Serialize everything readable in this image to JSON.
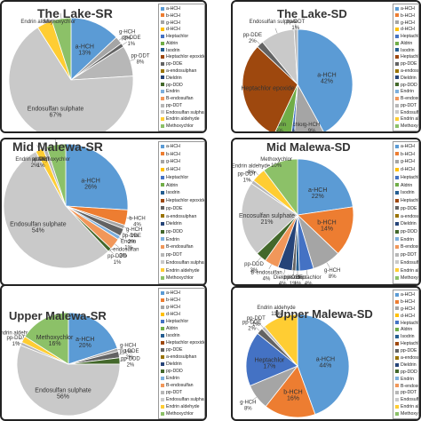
{
  "legend_items": [
    "a-HCH",
    "b-HCH",
    "g-HCH",
    "d-HCH",
    "Heptachlor",
    "Aldrin",
    "Isodrin",
    "Heptachlor epoxide",
    "pp-DDE",
    "a-endosulphan",
    "Dieldrin",
    "pp-DDD",
    "Endrin",
    "B-endosulfan",
    "pp-DDT",
    "Endosulfan sulphate",
    "Endrin aldehyde",
    "Methoxychlor"
  ],
  "colors": [
    "#5b9bd5",
    "#ed7d31",
    "#a5a5a5",
    "#ffc000",
    "#4472c4",
    "#70ad47",
    "#255e91",
    "#9e480e",
    "#636363",
    "#997300",
    "#264478",
    "#43682b",
    "#7cafdd",
    "#f1975a",
    "#b7b7b7",
    "#c9c9c9",
    "#ffcd33",
    "#8cc168"
  ],
  "chart_data": [
    {
      "type": "pie",
      "title": "The Lake-SR",
      "categories": [
        "a-HCH",
        "g-HCH",
        "pp-DDE",
        "pp-DDT",
        "Endosulfan sulphate",
        "Endrin aldehyde",
        "Methoxychlor"
      ],
      "values": [
        13,
        2,
        1,
        8,
        67,
        4,
        5
      ],
      "labels": [
        {
          "name": "a-HCH",
          "pct": "13%"
        },
        {
          "name": "g-HCH",
          "pct": "2%"
        },
        {
          "name": "pp-DDE",
          "pct": "1%"
        },
        {
          "name": "pp-DDT",
          "pct": "8%"
        },
        {
          "name": "Endosulfan sulphate",
          "pct": "67%"
        },
        {
          "name": "Endrin aldehyde",
          "pct": ""
        },
        {
          "name": "Methoxychlor",
          "pct": ""
        }
      ]
    },
    {
      "type": "pie",
      "title": "The Lake-SD",
      "categories": [
        "a-HCH",
        "g-HCH",
        "Heptachlor",
        "Aldrin",
        "Heptachlor epoxide",
        "pp-DDE",
        "Endosulfan sulphate",
        "pp-DDT"
      ],
      "values": [
        42,
        9,
        1,
        5,
        30,
        2,
        10,
        1
      ],
      "labels": [
        {
          "name": "a-HCH",
          "pct": "42%"
        },
        {
          "name": "g-HCH",
          "pct": "9%"
        },
        {
          "name": "Heptachlor",
          "pct": "1%"
        },
        {
          "name": "Aldrin",
          "pct": "5%"
        },
        {
          "name": "Heptachlor epoxide",
          "pct": ""
        },
        {
          "name": "pp-DDE",
          "pct": "2%"
        },
        {
          "name": "Endosulfan sulphate",
          "pct": ""
        },
        {
          "name": "pp-DDT",
          "pct": "1%"
        }
      ]
    },
    {
      "type": "pie",
      "title": "Mid Malewa-SR",
      "categories": [
        "a-HCH",
        "b-HCH",
        "g-HCH",
        "pp-DDE",
        "Endrin",
        "B-endosulfan",
        "pp-DDD",
        "Endosulfan sulphate",
        "Endrin aldehyde",
        "pp-DDT",
        "Methoxychlor"
      ],
      "values": [
        26,
        4,
        1,
        2,
        1,
        3,
        1,
        54,
        2,
        1,
        5
      ],
      "labels": [
        {
          "name": "a-HCH",
          "pct": "26%"
        },
        {
          "name": "b-HCH",
          "pct": "4%"
        },
        {
          "name": "g-HCH",
          "pct": "1%"
        },
        {
          "name": "pp-DDE",
          "pct": "2%"
        },
        {
          "name": "Endrin",
          "pct": "1%"
        },
        {
          "name": "B-endosulfan",
          "pct": "3%"
        },
        {
          "name": "pp-DDD",
          "pct": "1%"
        },
        {
          "name": "Endosulfan sulphate",
          "pct": "54%"
        },
        {
          "name": "Endrin aldehyde",
          "pct": "2%"
        },
        {
          "name": "pp-DDT",
          "pct": "1%"
        },
        {
          "name": "Methoxychlor",
          "pct": ""
        }
      ]
    },
    {
      "type": "pie",
      "title": "Mid Malewa-SD",
      "categories": [
        "a-HCH",
        "b-HCH",
        "g-HCH",
        "Heptachlor",
        "Isodrin",
        "pp-DDE",
        "Dieldrin",
        "B-endosulfan",
        "pp-DDD",
        "Endosulfan sulphate",
        "pp-DDT",
        "Endrin aldehyde",
        "Methoxychlor"
      ],
      "values": [
        22,
        14,
        8,
        4,
        1,
        1,
        4,
        4,
        3,
        21,
        1,
        4,
        10
      ],
      "labels": [
        {
          "name": "a-HCH",
          "pct": "22%"
        },
        {
          "name": "b-HCH",
          "pct": "14%"
        },
        {
          "name": "g-HCH",
          "pct": "8%"
        },
        {
          "name": "Heptachlor",
          "pct": "4%"
        },
        {
          "name": "Isodrin",
          "pct": "1%"
        },
        {
          "name": "pp-DDE",
          "pct": "1%"
        },
        {
          "name": "Dieldrin",
          "pct": "4%"
        },
        {
          "name": "B-endosulfan",
          "pct": "4%"
        },
        {
          "name": "pp-DDD",
          "pct": "3%"
        },
        {
          "name": "Encosulfan sulphate",
          "pct": "21%"
        },
        {
          "name": "pp-DDT",
          "pct": "1%"
        },
        {
          "name": "Endrin aldehyde",
          "pct": "4%"
        },
        {
          "name": "Methoxychlor",
          "pct": "10%"
        }
      ]
    },
    {
      "type": "pie",
      "title": "Upper Malewa-SR",
      "categories": [
        "a-HCH",
        "g-HCH",
        "pp-DDE",
        "pp-DDD",
        "Endosulfan sulphate",
        "pp-DDT",
        "Endrin aldehyde",
        "Methoxychlor"
      ],
      "values": [
        20,
        1,
        2,
        2,
        56,
        1,
        2,
        16
      ],
      "labels": [
        {
          "name": "a-HCH",
          "pct": "20%"
        },
        {
          "name": "g-HCH",
          "pct": "1%"
        },
        {
          "name": "pp-DDE",
          "pct": "2%"
        },
        {
          "name": "pp-DDD",
          "pct": "2%"
        },
        {
          "name": "Endosulfan sulphate",
          "pct": "56%"
        },
        {
          "name": "pp-DDT",
          "pct": "1%"
        },
        {
          "name": "Endrin aldehyde",
          "pct": ""
        },
        {
          "name": "Methoxychlor",
          "pct": "16%"
        }
      ]
    },
    {
      "type": "pie",
      "title": "Upper Malewa-SD",
      "categories": [
        "a-HCH",
        "b-HCH",
        "g-HCH",
        "Heptachlor",
        "pp-DDE",
        "pp-DDT",
        "Endrin aldehyde"
      ],
      "values": [
        44,
        16,
        8,
        17,
        2,
        1,
        11
      ],
      "labels": [
        {
          "name": "a-HCH",
          "pct": "44%"
        },
        {
          "name": "b-HCH",
          "pct": "16%"
        },
        {
          "name": "g-HCH",
          "pct": "8%"
        },
        {
          "name": "Heptachlor",
          "pct": "17%"
        },
        {
          "name": "pp-DDE",
          "pct": "2%"
        },
        {
          "name": "pp-DDT",
          "pct": "1%"
        },
        {
          "name": "Endrin aldehyde",
          "pct": "11%"
        }
      ]
    }
  ]
}
